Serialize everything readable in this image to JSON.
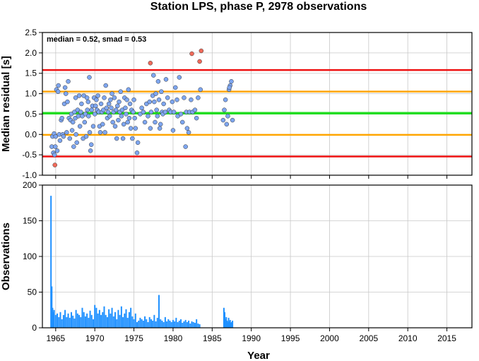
{
  "title": "Station LPS, phase P, 2978 observations",
  "colors": {
    "point_normal": "#7ea6f0",
    "point_outlier": "#f06a5a",
    "bar": "#1e90ff",
    "bar_outlier": "#ff3030",
    "line_median": "#22dd22",
    "line_smad": "#ffa500",
    "line_outer": "#ee1111",
    "grid": "#c8c8c8"
  },
  "chart_data": [
    {
      "type": "scatter",
      "ylabel": "Median residual [s]",
      "annotation": "median = 0.52, smad = 0.53",
      "xlim": [
        1963.3,
        2018.2
      ],
      "ylim": [
        -1.0,
        2.5
      ],
      "x_ticks": [
        1965,
        1970,
        1975,
        1980,
        1985,
        1990,
        1995,
        2000,
        2005,
        2010,
        2015
      ],
      "y_ticks": [
        -1.0,
        -0.5,
        0.0,
        0.5,
        1.0,
        1.5,
        2.0,
        2.5
      ],
      "y_tick_labels": [
        "-1.0",
        "-0.5",
        "0.0",
        "0.5",
        "1.0",
        "1.5",
        "2.0",
        "2.5"
      ],
      "grid": true,
      "hlines": [
        {
          "y": 1.58,
          "role": "outer"
        },
        {
          "y": 1.05,
          "role": "smad"
        },
        {
          "y": 0.52,
          "role": "median"
        },
        {
          "y": -0.01,
          "role": "smad"
        },
        {
          "y": -0.54,
          "role": "outer"
        }
      ],
      "series": [
        {
          "role": "normal",
          "points": [
            [
              1964.5,
              -0.3
            ],
            [
              1964.6,
              -0.05
            ],
            [
              1964.7,
              -0.45
            ],
            [
              1964.8,
              0.02
            ],
            [
              1964.85,
              -0.5
            ],
            [
              1964.95,
              -0.3
            ],
            [
              1965.0,
              -0.05
            ],
            [
              1965.1,
              1.1
            ],
            [
              1965.2,
              -0.4
            ],
            [
              1965.3,
              1.05
            ],
            [
              1965.35,
              1.2
            ],
            [
              1965.45,
              0.0
            ],
            [
              1965.55,
              -0.15
            ],
            [
              1965.7,
              0.35
            ],
            [
              1965.8,
              0.4
            ],
            [
              1965.9,
              0.0
            ],
            [
              1966.0,
              -0.05
            ],
            [
              1966.1,
              0.75
            ],
            [
              1966.2,
              1.15
            ],
            [
              1966.3,
              1.0
            ],
            [
              1966.4,
              0.05
            ],
            [
              1966.5,
              0.8
            ],
            [
              1966.6,
              1.3
            ],
            [
              1966.7,
              0.4
            ],
            [
              1966.8,
              -0.1
            ],
            [
              1966.9,
              0.35
            ],
            [
              1967.0,
              0.5
            ],
            [
              1967.1,
              0.1
            ],
            [
              1967.2,
              0.3
            ],
            [
              1967.3,
              -0.3
            ],
            [
              1967.4,
              0.55
            ],
            [
              1967.5,
              0.4
            ],
            [
              1967.55,
              0.9
            ],
            [
              1967.6,
              0.0
            ],
            [
              1967.7,
              -0.2
            ],
            [
              1967.8,
              0.6
            ],
            [
              1967.9,
              0.45
            ],
            [
              1968.0,
              0.95
            ],
            [
              1968.1,
              0.2
            ],
            [
              1968.2,
              0.55
            ],
            [
              1968.3,
              0.75
            ],
            [
              1968.4,
              0.45
            ],
            [
              1968.5,
              -0.1
            ],
            [
              1968.6,
              0.95
            ],
            [
              1968.7,
              0.3
            ],
            [
              1968.8,
              0.5
            ],
            [
              1968.9,
              -0.05
            ],
            [
              1969.0,
              0.9
            ],
            [
              1969.05,
              0.6
            ],
            [
              1969.15,
              0.8
            ],
            [
              1969.2,
              0.45
            ],
            [
              1969.3,
              1.4
            ],
            [
              1969.35,
              0.05
            ],
            [
              1969.45,
              -0.4
            ],
            [
              1969.55,
              -0.25
            ],
            [
              1969.6,
              0.6
            ],
            [
              1969.7,
              0.7
            ],
            [
              1969.8,
              0.2
            ],
            [
              1969.9,
              0.9
            ],
            [
              1970.0,
              0.5
            ],
            [
              1970.1,
              0.7
            ],
            [
              1970.2,
              0.85
            ],
            [
              1970.3,
              0.6
            ],
            [
              1970.4,
              0.95
            ],
            [
              1970.5,
              0.55
            ],
            [
              1970.6,
              0.2
            ],
            [
              1970.7,
              0.05
            ],
            [
              1970.8,
              0.75
            ],
            [
              1970.9,
              0.55
            ],
            [
              1971.0,
              0.25
            ],
            [
              1971.1,
              0.6
            ],
            [
              1971.2,
              0.9
            ],
            [
              1971.3,
              0.05
            ],
            [
              1971.4,
              1.2
            ],
            [
              1971.5,
              0.65
            ],
            [
              1971.6,
              0.4
            ],
            [
              1971.7,
              0.55
            ],
            [
              1971.8,
              0.75
            ],
            [
              1971.9,
              0.45
            ],
            [
              1972.0,
              0.85
            ],
            [
              1972.1,
              0.65
            ],
            [
              1972.2,
              1.0
            ],
            [
              1972.3,
              0.3
            ],
            [
              1972.4,
              0.55
            ],
            [
              1972.5,
              0.9
            ],
            [
              1972.6,
              0.2
            ],
            [
              1972.7,
              0.6
            ],
            [
              1972.8,
              -0.1
            ],
            [
              1972.9,
              0.7
            ],
            [
              1973.0,
              0.35
            ],
            [
              1973.1,
              0.8
            ],
            [
              1973.2,
              0.55
            ],
            [
              1973.3,
              1.05
            ],
            [
              1973.4,
              0.45
            ],
            [
              1973.5,
              0.6
            ],
            [
              1973.6,
              -0.1
            ],
            [
              1973.7,
              0.25
            ],
            [
              1973.8,
              0.9
            ],
            [
              1973.9,
              0.65
            ],
            [
              1974.0,
              0.5
            ],
            [
              1974.1,
              0.85
            ],
            [
              1974.2,
              0.3
            ],
            [
              1974.3,
              1.1
            ],
            [
              1974.4,
              0.4
            ],
            [
              1974.5,
              0.75
            ],
            [
              1974.6,
              0.15
            ],
            [
              1974.7,
              0.6
            ],
            [
              1974.8,
              -0.1
            ],
            [
              1974.9,
              0.55
            ],
            [
              1975.0,
              0.85
            ],
            [
              1975.1,
              0.4
            ],
            [
              1975.2,
              0.15
            ],
            [
              1975.4,
              -0.45
            ],
            [
              1975.5,
              -0.2
            ],
            [
              1975.8,
              0.5
            ],
            [
              1976.0,
              0.65
            ],
            [
              1976.2,
              0.55
            ],
            [
              1976.4,
              0.3
            ],
            [
              1976.6,
              0.75
            ],
            [
              1976.8,
              0.45
            ],
            [
              1977.0,
              0.8
            ],
            [
              1977.1,
              0.15
            ],
            [
              1977.2,
              0.55
            ],
            [
              1977.4,
              0.95
            ],
            [
              1977.5,
              1.45
            ],
            [
              1977.6,
              0.8
            ],
            [
              1977.7,
              0.3
            ],
            [
              1977.8,
              1.0
            ],
            [
              1977.9,
              0.6
            ],
            [
              1978.0,
              0.45
            ],
            [
              1978.1,
              1.3
            ],
            [
              1978.2,
              0.85
            ],
            [
              1978.3,
              0.15
            ],
            [
              1978.4,
              0.25
            ],
            [
              1978.5,
              1.05
            ],
            [
              1978.6,
              0.55
            ],
            [
              1978.7,
              0.5
            ],
            [
              1978.8,
              0.75
            ],
            [
              1979.0,
              0.55
            ],
            [
              1979.1,
              1.35
            ],
            [
              1979.3,
              0.9
            ],
            [
              1979.5,
              0.6
            ],
            [
              1979.7,
              0.55
            ],
            [
              1979.9,
              0.8
            ],
            [
              1980.0,
              0.1
            ],
            [
              1980.1,
              0.55
            ],
            [
              1980.3,
              1.15
            ],
            [
              1980.5,
              0.85
            ],
            [
              1980.6,
              0.45
            ],
            [
              1980.8,
              1.4
            ],
            [
              1981.0,
              0.5
            ],
            [
              1981.2,
              0.3
            ],
            [
              1981.4,
              0.9
            ],
            [
              1981.6,
              -0.3
            ],
            [
              1981.7,
              0.55
            ],
            [
              1981.8,
              0.15
            ],
            [
              1982.0,
              0.05
            ],
            [
              1982.1,
              0.55
            ],
            [
              1982.3,
              0.85
            ],
            [
              1982.5,
              0.55
            ],
            [
              1982.8,
              0.6
            ],
            [
              1983.0,
              0.4
            ],
            [
              1983.2,
              0.9
            ],
            [
              1983.5,
              1.1
            ],
            [
              1986.4,
              0.35
            ],
            [
              1986.55,
              0.6
            ],
            [
              1986.7,
              0.85
            ],
            [
              1986.85,
              0.25
            ],
            [
              1987.0,
              0.45
            ],
            [
              1987.15,
              1.1
            ],
            [
              1987.3,
              1.2
            ],
            [
              1987.45,
              1.3
            ],
            [
              1987.6,
              0.35
            ],
            [
              1987.2,
              1.15
            ]
          ]
        },
        {
          "role": "outlier",
          "points": [
            [
              1964.9,
              -0.75
            ],
            [
              1977.1,
              1.75
            ],
            [
              1982.4,
              1.98
            ],
            [
              1983.4,
              1.79
            ],
            [
              1983.6,
              2.05
            ]
          ]
        }
      ]
    },
    {
      "type": "bar",
      "xlabel": "Year",
      "ylabel": "Observations",
      "xlim": [
        1963.3,
        2018.2
      ],
      "ylim": [
        0,
        200
      ],
      "x_ticks": [
        1965,
        1970,
        1975,
        1980,
        1985,
        1990,
        1995,
        2000,
        2005,
        2010,
        2015
      ],
      "x_tick_labels": [
        "1965",
        "1970",
        "1975",
        "1980",
        "1985",
        "1990",
        "1995",
        "2000",
        "2005",
        "2010",
        "2015"
      ],
      "y_ticks": [
        0,
        50,
        100,
        150,
        200
      ],
      "y_tick_labels": [
        "0",
        "50",
        "100",
        "150",
        "200"
      ],
      "grid": true,
      "x": [
        1964.4,
        1964.5,
        1964.6,
        1964.7,
        1964.8,
        1965.0,
        1965.2,
        1965.4,
        1965.6,
        1965.8,
        1966.0,
        1966.2,
        1966.4,
        1966.6,
        1966.8,
        1967.0,
        1967.2,
        1967.4,
        1967.6,
        1967.8,
        1968.0,
        1968.2,
        1968.4,
        1968.6,
        1968.8,
        1969.0,
        1969.2,
        1969.4,
        1969.6,
        1969.8,
        1970.0,
        1970.2,
        1970.4,
        1970.6,
        1970.8,
        1971.0,
        1971.2,
        1971.4,
        1971.6,
        1971.8,
        1972.0,
        1972.2,
        1972.4,
        1972.6,
        1972.8,
        1973.0,
        1973.2,
        1973.4,
        1973.6,
        1973.8,
        1974.0,
        1974.2,
        1974.4,
        1974.6,
        1974.8,
        1975.0,
        1975.2,
        1975.4,
        1975.6,
        1975.8,
        1976.0,
        1976.2,
        1976.4,
        1976.6,
        1976.8,
        1977.0,
        1977.2,
        1977.4,
        1977.6,
        1977.8,
        1978.0,
        1978.2,
        1978.4,
        1978.6,
        1978.8,
        1979.0,
        1979.2,
        1979.4,
        1979.6,
        1979.8,
        1980.0,
        1980.2,
        1980.4,
        1980.6,
        1980.8,
        1981.0,
        1981.2,
        1981.4,
        1981.6,
        1981.8,
        1982.0,
        1982.2,
        1982.4,
        1982.6,
        1982.8,
        1983.0,
        1983.2,
        1983.4,
        1986.5,
        1986.6,
        1986.7,
        1986.8,
        1986.9,
        1987.0,
        1987.1,
        1987.2,
        1987.3,
        1987.4,
        1987.5,
        1987.6
      ],
      "values": [
        185,
        58,
        28,
        22,
        25,
        18,
        20,
        15,
        22,
        12,
        18,
        25,
        15,
        20,
        14,
        22,
        17,
        13,
        25,
        20,
        18,
        15,
        28,
        22,
        16,
        20,
        14,
        24,
        18,
        12,
        32,
        28,
        20,
        25,
        18,
        22,
        30,
        18,
        15,
        26,
        20,
        28,
        16,
        22,
        12,
        25,
        18,
        30,
        15,
        20,
        26,
        14,
        22,
        28,
        16,
        12,
        20,
        8,
        10,
        14,
        12,
        10,
        16,
        12,
        8,
        15,
        12,
        10,
        18,
        9,
        14,
        46,
        12,
        10,
        8,
        15,
        9,
        12,
        10,
        8,
        11,
        9,
        14,
        8,
        10,
        12,
        7,
        9,
        11,
        8,
        10,
        6,
        9,
        8,
        7,
        12,
        6,
        5,
        28,
        22,
        12,
        15,
        10,
        8,
        14,
        9,
        11,
        7,
        8,
        10
      ]
    }
  ]
}
